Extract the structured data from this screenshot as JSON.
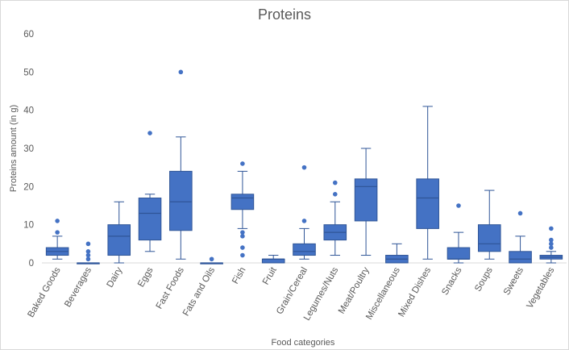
{
  "chart_data": {
    "type": "box",
    "title": "Proteins",
    "xlabel": "Food categories",
    "ylabel": "Proteins amount (in g)",
    "ylim": [
      0,
      60
    ],
    "yticks": [
      0,
      10,
      20,
      30,
      40,
      50,
      60
    ],
    "grid": false,
    "legend": "none",
    "colors": {
      "box_fill": "#4472C4",
      "box_stroke": "#2F5597",
      "whisker": "#2F5597",
      "outlier": "#4472C4"
    },
    "categories": [
      "Baked Goods",
      "Beverages",
      "Dairy",
      "Eggs",
      "Fast Foods",
      "Fats and Oils",
      "Fish",
      "Fruit",
      "Grain/Cereal",
      "Legumes/Nuts",
      "Meat/Poultry",
      "Miscellaneous",
      "Mixed Dishes",
      "Snacks",
      "Soups",
      "Sweets",
      "Vegetables"
    ],
    "boxes": [
      {
        "category": "Baked Goods",
        "min": 1,
        "q1": 2,
        "median": 3,
        "q3": 4,
        "max": 7,
        "outliers": [
          8,
          11
        ]
      },
      {
        "category": "Beverages",
        "min": 0,
        "q1": 0,
        "median": 0,
        "q3": 0,
        "max": 0,
        "outliers": [
          1,
          2,
          3,
          5
        ]
      },
      {
        "category": "Dairy",
        "min": 0,
        "q1": 2,
        "median": 7,
        "q3": 10,
        "max": 16,
        "outliers": []
      },
      {
        "category": "Eggs",
        "min": 3,
        "q1": 6,
        "median": 13,
        "q3": 17,
        "max": 18,
        "outliers": [
          34
        ]
      },
      {
        "category": "Fast Foods",
        "min": 1,
        "q1": 8.5,
        "median": 16,
        "q3": 24,
        "max": 33,
        "outliers": [
          50
        ]
      },
      {
        "category": "Fats and Oils",
        "min": 0,
        "q1": 0,
        "median": 0,
        "q3": 0,
        "max": 0,
        "outliers": [
          1
        ]
      },
      {
        "category": "Fish",
        "min": 9,
        "q1": 14,
        "median": 17,
        "q3": 18,
        "max": 24,
        "outliers": [
          2,
          4,
          7,
          8,
          26
        ]
      },
      {
        "category": "Fruit",
        "min": 0,
        "q1": 0,
        "median": 1,
        "q3": 1,
        "max": 2,
        "outliers": []
      },
      {
        "category": "Grain/Cereal",
        "min": 1,
        "q1": 2,
        "median": 3,
        "q3": 5,
        "max": 9,
        "outliers": [
          11,
          25
        ]
      },
      {
        "category": "Legumes/Nuts",
        "min": 2,
        "q1": 6,
        "median": 8,
        "q3": 10,
        "max": 16,
        "outliers": [
          18,
          21
        ]
      },
      {
        "category": "Meat/Poultry",
        "min": 2,
        "q1": 11,
        "median": 20,
        "q3": 22,
        "max": 30,
        "outliers": []
      },
      {
        "category": "Miscellaneous",
        "min": 0,
        "q1": 0,
        "median": 1,
        "q3": 2,
        "max": 5,
        "outliers": []
      },
      {
        "category": "Mixed Dishes",
        "min": 1,
        "q1": 9,
        "median": 17,
        "q3": 22,
        "max": 41,
        "outliers": []
      },
      {
        "category": "Snacks",
        "min": 0,
        "q1": 1,
        "median": 1,
        "q3": 4,
        "max": 8,
        "outliers": [
          15
        ]
      },
      {
        "category": "Soups",
        "min": 1,
        "q1": 3,
        "median": 5,
        "q3": 10,
        "max": 19,
        "outliers": []
      },
      {
        "category": "Sweets",
        "min": 0,
        "q1": 0,
        "median": 1,
        "q3": 3,
        "max": 7,
        "outliers": [
          13
        ]
      },
      {
        "category": "Vegetables",
        "min": 0,
        "q1": 1,
        "median": 1.5,
        "q3": 2,
        "max": 3,
        "outliers": [
          4,
          5,
          6,
          9
        ]
      }
    ]
  }
}
